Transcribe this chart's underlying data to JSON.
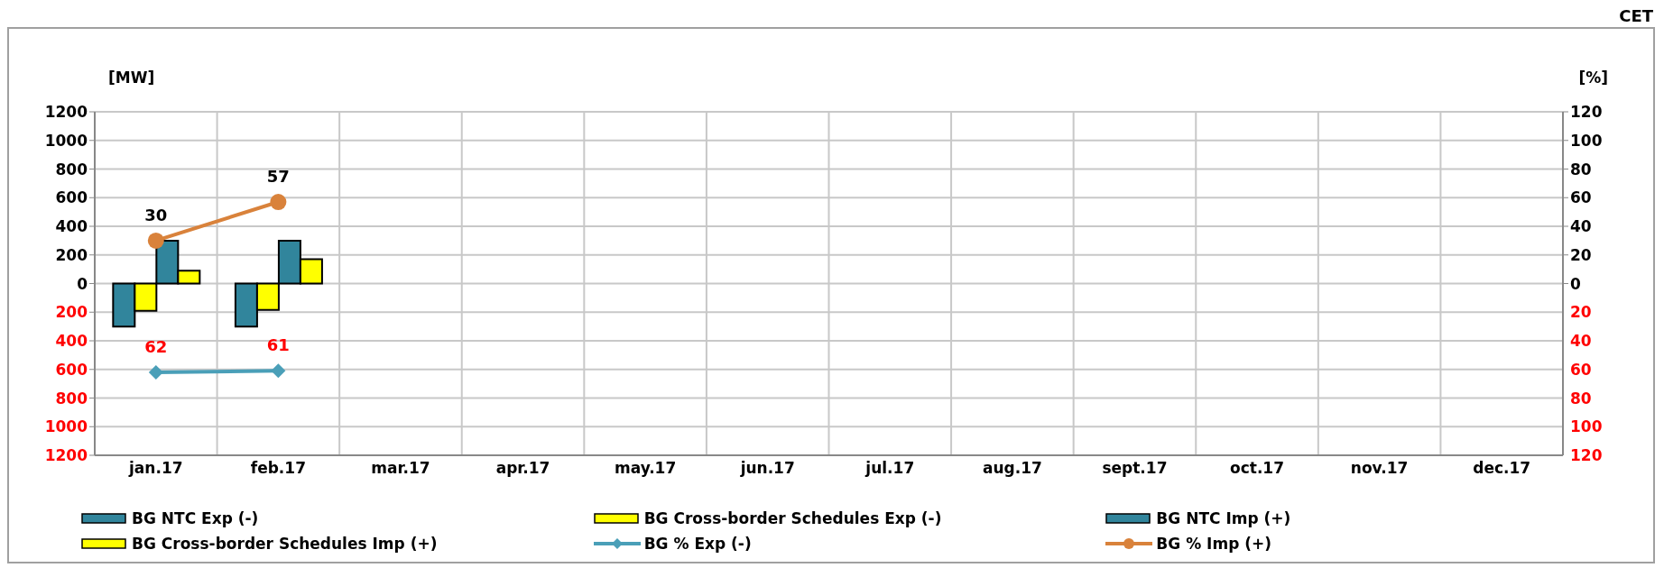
{
  "chart_data": {
    "type": "bar",
    "annotations": [
      "CET"
    ],
    "ylabel": "[MW]",
    "y2label": "[%]",
    "categories": [
      "jan.17",
      "feb.17",
      "mar.17",
      "apr.17",
      "may.17",
      "jun.17",
      "jul.17",
      "aug.17",
      "sept.17",
      "oct.17",
      "nov.17",
      "dec.17"
    ],
    "series": [
      {
        "name": "BG NTC Exp (-)",
        "color": "#31859c",
        "values": [
          -300,
          -300,
          null,
          null,
          null,
          null,
          null,
          null,
          null,
          null,
          null,
          null
        ]
      },
      {
        "name": "BG Cross-border Schedules Exp (-)",
        "color": "#ffff00",
        "values": [
          -190,
          -185,
          null,
          null,
          null,
          null,
          null,
          null,
          null,
          null,
          null,
          null
        ]
      },
      {
        "name": "BG NTC Imp (+)",
        "color": "#31859c",
        "values": [
          300,
          300,
          null,
          null,
          null,
          null,
          null,
          null,
          null,
          null,
          null,
          null
        ]
      },
      {
        "name": "BG Cross-border Schedules Imp (+)",
        "color": "#ffff00",
        "values": [
          90,
          170,
          null,
          null,
          null,
          null,
          null,
          null,
          null,
          null,
          null,
          null
        ]
      },
      {
        "name": "BG % Exp (-)",
        "type": "line",
        "axis": "y3",
        "marker": "diamond",
        "color": "#4a9fb8",
        "values": [
          62,
          61,
          null,
          null,
          null,
          null,
          null,
          null,
          null,
          null,
          null,
          null
        ],
        "value_labels": [
          "62",
          "61",
          null,
          null,
          null,
          null,
          null,
          null,
          null,
          null,
          null,
          null
        ]
      },
      {
        "name": "BG % Imp (+)",
        "type": "line",
        "axis": "y2",
        "marker": "circle",
        "color": "#d9823b",
        "values": [
          30,
          57,
          null,
          null,
          null,
          null,
          null,
          null,
          null,
          null,
          null,
          null
        ],
        "value_labels": [
          "30",
          "57",
          null,
          null,
          null,
          null,
          null,
          null,
          null,
          null,
          null,
          null
        ]
      }
    ],
    "ylim": [
      -1200,
      1200
    ],
    "yticks": [
      {
        "value": -1200,
        "label": "1200"
      },
      {
        "value": -1000,
        "label": "1000"
      },
      {
        "value": -800,
        "label": "800"
      },
      {
        "value": -600,
        "label": "600"
      },
      {
        "value": -400,
        "label": "400"
      },
      {
        "value": -200,
        "label": "200"
      },
      0,
      200,
      400,
      600,
      800,
      1000,
      1200
    ],
    "y2lim": [
      -120,
      120
    ],
    "y2ticks": [
      0,
      20,
      40,
      60,
      80,
      100,
      120
    ],
    "y3lim": [
      120,
      -120
    ],
    "y3ticks": [
      20,
      40,
      60,
      80,
      100,
      120
    ],
    "grid": true,
    "legend": "bottom"
  }
}
